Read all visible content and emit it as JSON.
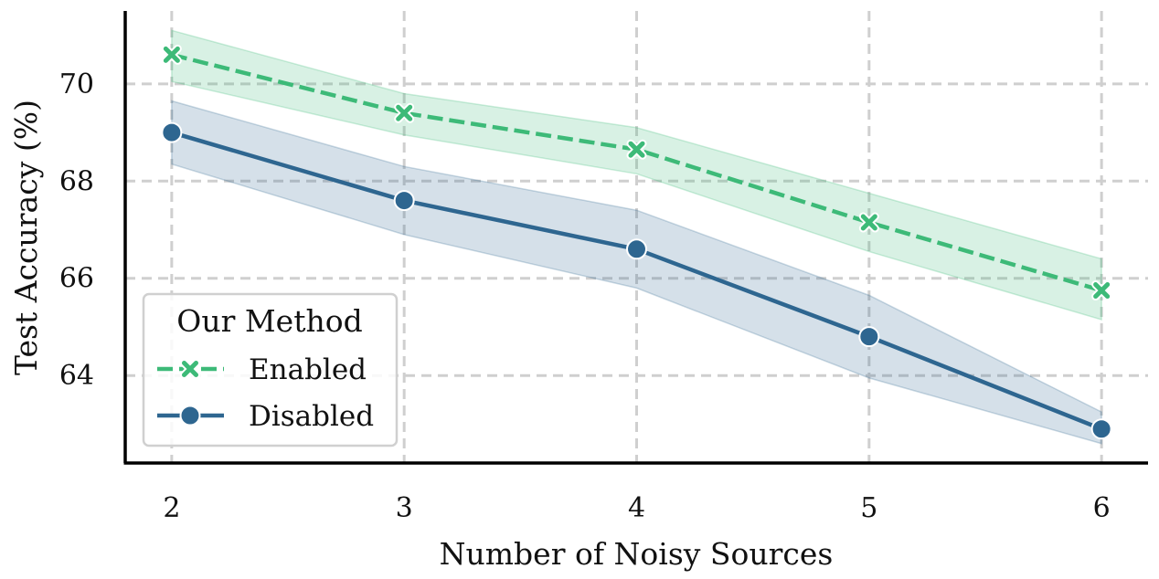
{
  "chart_data": {
    "type": "line",
    "xlabel": "Number of Noisy Sources",
    "ylabel": "Test Accuracy (%)",
    "x": [
      2,
      3,
      4,
      5,
      6
    ],
    "xlim": [
      1.8,
      6.2
    ],
    "ylim": [
      62.2,
      71.5
    ],
    "y_ticks": [
      64,
      66,
      68,
      70
    ],
    "grid": true,
    "legend": {
      "title": "Our Method",
      "placement": "lower-left"
    },
    "series": [
      {
        "name": "Enabled",
        "values": [
          70.6,
          69.4,
          68.65,
          67.15,
          65.75
        ],
        "lower": [
          70.05,
          68.95,
          68.15,
          66.55,
          65.15
        ],
        "upper": [
          71.1,
          69.8,
          69.1,
          67.75,
          66.4
        ],
        "color": "#3dba78",
        "line_style": "dashed",
        "marker": "x"
      },
      {
        "name": "Disabled",
        "values": [
          69.0,
          67.6,
          66.6,
          64.8,
          62.9
        ],
        "lower": [
          68.35,
          66.9,
          65.8,
          63.95,
          62.6
        ],
        "upper": [
          69.65,
          68.3,
          67.4,
          65.65,
          63.25
        ],
        "color": "#2e6690",
        "line_style": "solid",
        "marker": "circle"
      }
    ]
  }
}
